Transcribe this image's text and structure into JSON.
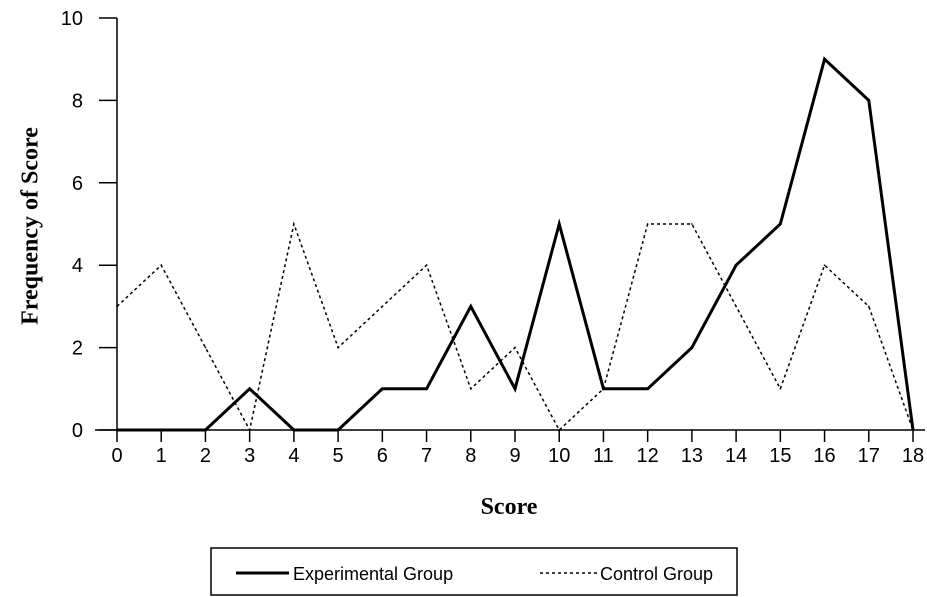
{
  "chart_data": {
    "type": "line",
    "title": "",
    "xlabel": "Score",
    "ylabel": "Frequency of Score",
    "x": [
      0,
      1,
      2,
      3,
      4,
      5,
      6,
      7,
      8,
      9,
      10,
      11,
      12,
      13,
      14,
      15,
      16,
      17,
      18
    ],
    "x_tick_labels": [
      "0",
      "1",
      "2",
      "3",
      "4",
      "5",
      "6",
      "7",
      "8",
      "9",
      "10",
      "11",
      "12",
      "13",
      "14",
      "15",
      "16",
      "17",
      "18"
    ],
    "y_tick_labels": [
      "0",
      "2",
      "4",
      "6",
      "8",
      "10"
    ],
    "xlim": [
      0,
      18
    ],
    "ylim": [
      0,
      10
    ],
    "grid": false,
    "legend_position": "bottom-center",
    "series": [
      {
        "name": "Experimental Group",
        "style": "solid",
        "color": "#000000",
        "values": [
          0,
          0,
          0,
          1,
          0,
          0,
          1,
          1,
          3,
          1,
          5,
          1,
          1,
          2,
          4,
          5,
          9,
          8,
          0
        ]
      },
      {
        "name": "Control Group",
        "style": "dotted",
        "color": "#000000",
        "values": [
          3,
          4,
          2,
          0,
          5,
          2,
          3,
          4,
          1,
          2,
          0,
          1,
          5,
          5,
          3,
          1,
          4,
          3,
          0
        ]
      }
    ]
  }
}
